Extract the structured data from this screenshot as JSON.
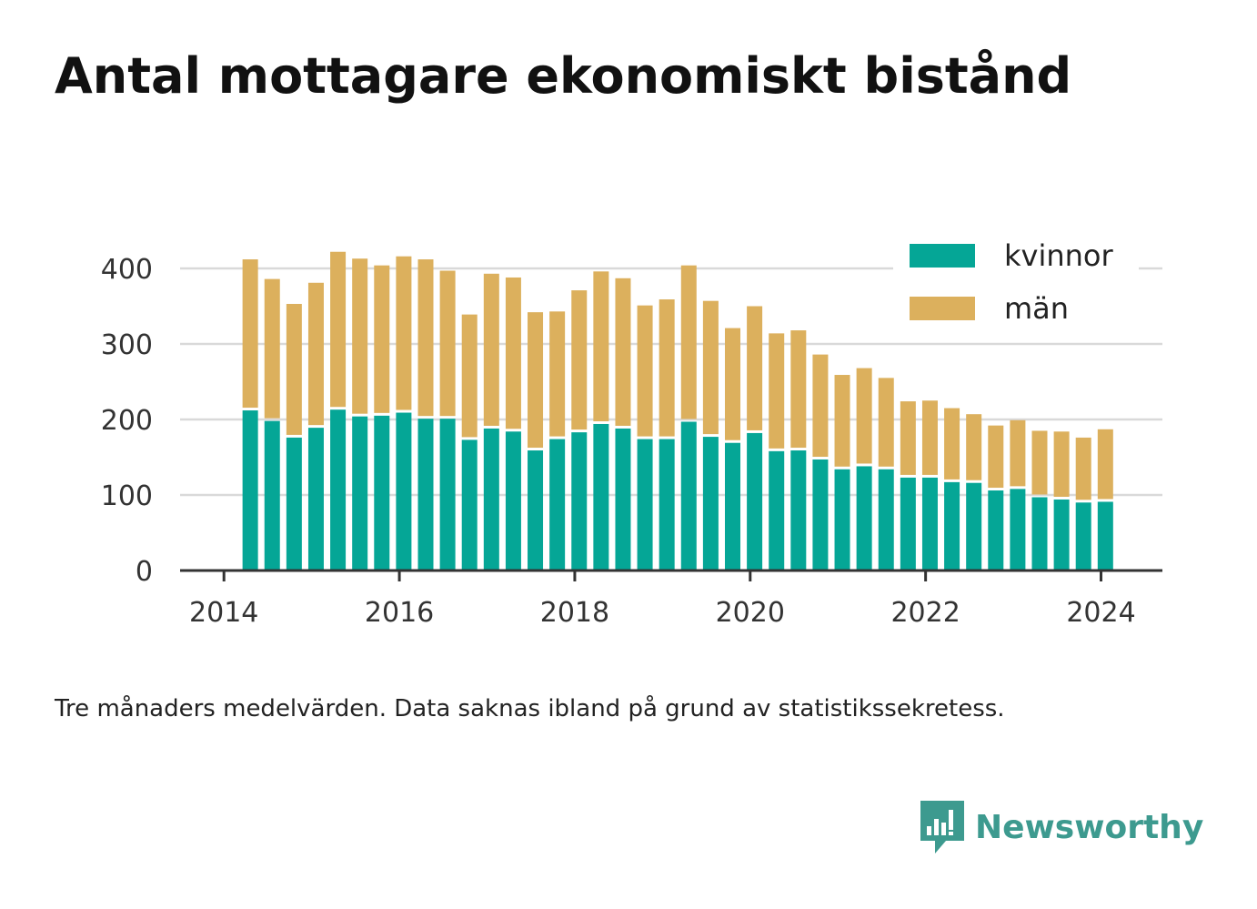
{
  "title": "Antal mottagare ekonomiskt bistånd",
  "subtitle": "Tre månaders medelvärden. Data saknas ibland på grund av statistikssekretess.",
  "brand": {
    "name": "Newsworthy"
  },
  "colors": {
    "kvinnor": "#05a696",
    "man": "#dcb05d",
    "grid": "#d9d9d9",
    "axis": "#333333",
    "brand": "#3d9a8f"
  },
  "chart_data": {
    "type": "bar",
    "stacked": true,
    "x": [
      2014.3,
      2014.55,
      2014.8,
      2015.05,
      2015.3,
      2015.55,
      2015.8,
      2016.05,
      2016.3,
      2016.55,
      2016.8,
      2017.05,
      2017.3,
      2017.55,
      2017.8,
      2018.05,
      2018.3,
      2018.55,
      2018.8,
      2019.05,
      2019.3,
      2019.55,
      2019.8,
      2020.05,
      2020.3,
      2020.55,
      2020.8,
      2021.05,
      2021.3,
      2021.55,
      2021.8,
      2022.05,
      2022.3,
      2022.55,
      2022.8,
      2023.05,
      2023.3,
      2023.55,
      2023.8,
      2024.05
    ],
    "series": [
      {
        "name": "kvinnor",
        "values": [
          212,
          198,
          176,
          189,
          213,
          204,
          205,
          209,
          201,
          201,
          173,
          188,
          184,
          159,
          174,
          183,
          194,
          188,
          174,
          174,
          197,
          177,
          169,
          182,
          158,
          159,
          147,
          134,
          138,
          134,
          123,
          123,
          117,
          116,
          106,
          108,
          97,
          94,
          90,
          91
        ]
      },
      {
        "name": "män",
        "values": [
          200,
          188,
          177,
          192,
          209,
          209,
          199,
          207,
          211,
          196,
          166,
          205,
          204,
          183,
          169,
          188,
          202,
          199,
          177,
          185,
          207,
          180,
          152,
          168,
          156,
          159,
          139,
          125,
          130,
          121,
          101,
          102,
          98,
          91,
          86,
          91,
          88,
          90,
          86,
          96
        ]
      }
    ],
    "legend": [
      "kvinnor",
      "män"
    ],
    "legend_position": "top-right",
    "xticks": [
      2014,
      2016,
      2018,
      2020,
      2022,
      2024
    ],
    "xtick_labels": [
      "2014",
      "2016",
      "2018",
      "2020",
      "2022",
      "2024"
    ],
    "yticks": [
      0,
      100,
      200,
      300,
      400
    ],
    "ytick_labels": [
      "0",
      "100",
      "200",
      "300",
      "400"
    ],
    "xlim": [
      2013.5,
      2024.7
    ],
    "ylim": [
      0,
      400
    ],
    "grid": "horizontal"
  }
}
